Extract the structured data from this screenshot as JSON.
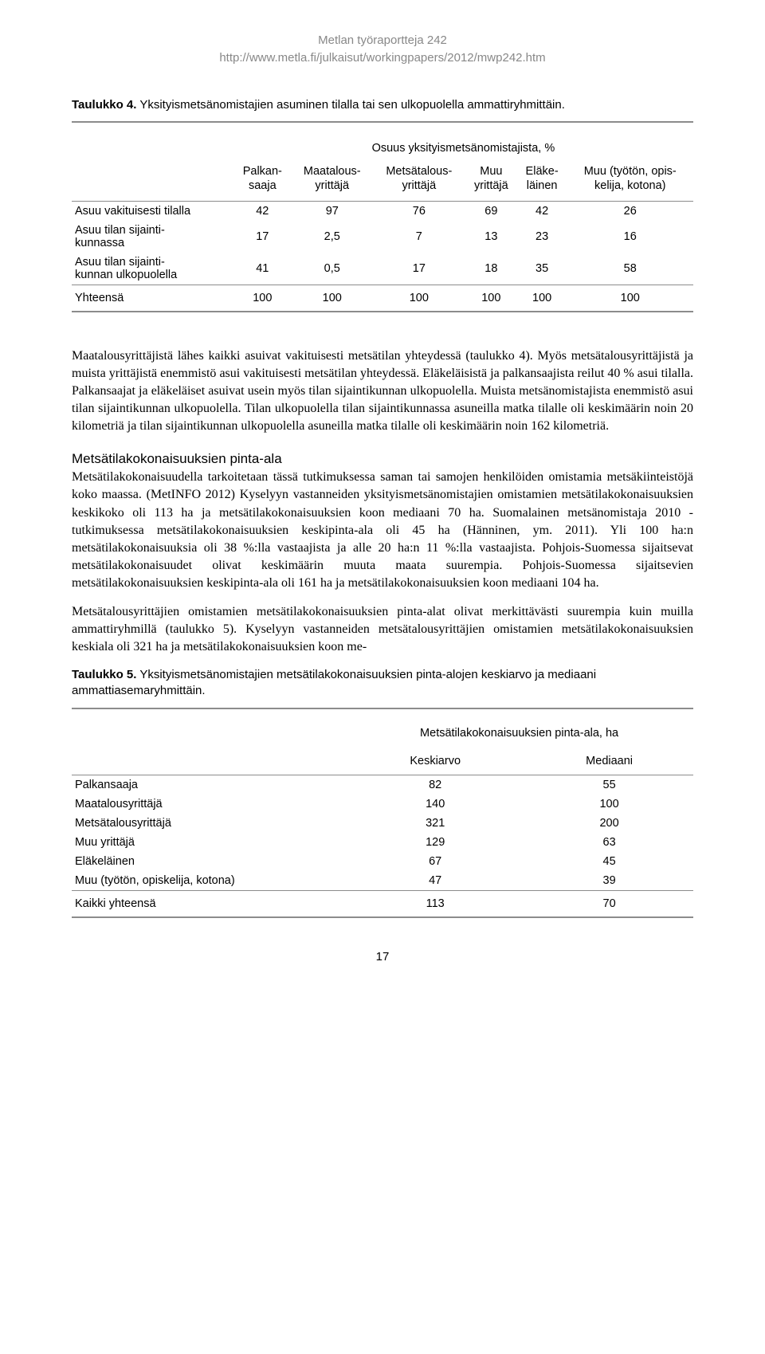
{
  "header": {
    "line1": "Metlan työraportteja 242",
    "line2": "http://www.metla.fi/julkaisut/workingpapers/2012/mwp242.htm"
  },
  "table4": {
    "caption_bold": "Taulukko 4.",
    "caption_rest": " Yksityismetsänomistajien asuminen tilalla tai sen ulkopuolella ammattiryhmittäin.",
    "super_header": "Osuus yksityismetsänomistajista, %",
    "columns": [
      "Palkan-\nsaaja",
      "Maatalous-\nyrittäjä",
      "Metsätalous-\nyrittäjä",
      "Muu\nyrittäjä",
      "Eläke-\nläinen",
      "Muu (työtön, opis-\nkelija, kotona)"
    ],
    "rows": [
      {
        "label": "Asuu vakituisesti tilalla",
        "v": [
          "42",
          "97",
          "76",
          "69",
          "42",
          "26"
        ]
      },
      {
        "label": "Asuu tilan sijainti-\nkunnassa",
        "v": [
          "17",
          "2,5",
          "7",
          "13",
          "23",
          "16"
        ]
      },
      {
        "label": "Asuu tilan sijainti-\nkunnan ulkopuolella",
        "v": [
          "41",
          "0,5",
          "17",
          "18",
          "35",
          "58"
        ]
      }
    ],
    "footer": {
      "label": "Yhteensä",
      "v": [
        "100",
        "100",
        "100",
        "100",
        "100",
        "100"
      ]
    }
  },
  "para1": "Maatalousyrittäjistä lähes kaikki asuivat vakituisesti metsätilan yhteydessä (taulukko 4). Myös metsätalousyrittäjistä ja muista yrittäjistä enemmistö asui vakituisesti metsätilan yhteydessä. Eläkeläisistä ja palkansaajista reilut 40 % asui tilalla. Palkansaajat ja eläkeläiset asuivat usein myös tilan sijaintikunnan ulkopuolella. Muista metsänomistajista enemmistö asui tilan sijaintikunnan ulkopuolella. Tilan ulkopuolella tilan sijaintikunnassa asuneilla matka tilalle oli keskimäärin noin 20 kilometriä ja tilan sijaintikunnan ulkopuolella asuneilla matka tilalle oli keskimäärin noin 162 kilometriä.",
  "section_h": "Metsätilakokonaisuuksien pinta-ala",
  "para2": "Metsätilakokonaisuudella tarkoitetaan tässä tutkimuksessa saman tai samojen henkilöiden omistamia metsäkiinteistöjä koko maassa. (MetINFO 2012) Kyselyyn vastanneiden yksityismetsänomistajien omistamien metsätilakokonaisuuksien keskikoko oli 113 ha ja metsätilakokonaisuuksien koon mediaani 70 ha. Suomalainen metsänomistaja 2010 -tutkimuksessa metsätilakokonaisuuksien keskipinta-ala oli 45 ha (Hänninen, ym. 2011). Yli 100 ha:n metsätilakokonaisuuksia oli 38 %:lla vastaajista ja alle 20 ha:n 11 %:lla vastaajista. Pohjois-Suomessa sijaitsevat metsätilakokonaisuudet olivat keskimäärin muuta maata suurempia. Pohjois-Suomessa sijaitsevien metsätilakokonaisuuksien keskipinta-ala oli 161 ha ja metsätilakokonaisuuksien koon mediaani 104 ha.",
  "para3": "Metsätalousyrittäjien omistamien metsätilakokonaisuuksien pinta-alat olivat merkittävästi suurempia kuin muilla ammattiryhmillä (taulukko 5). Kyselyyn vastanneiden metsätalousyrittäjien omistamien metsätilakokonaisuuksien keskiala oli 321 ha ja metsätilakokonaisuuksien koon me-",
  "table5": {
    "caption_bold": "Taulukko 5.",
    "caption_rest": " Yksityismetsänomistajien metsätilakokonaisuuksien pinta-alojen keskiarvo ja mediaani ammattiasemaryhmittäin.",
    "super_header": "Metsätilakokonaisuuksien pinta-ala, ha",
    "columns": [
      "Keskiarvo",
      "Mediaani"
    ],
    "rows": [
      {
        "label": "Palkansaaja",
        "v": [
          "82",
          "55"
        ]
      },
      {
        "label": "Maatalousyrittäjä",
        "v": [
          "140",
          "100"
        ]
      },
      {
        "label": "Metsätalousyrittäjä",
        "v": [
          "321",
          "200"
        ]
      },
      {
        "label": "Muu yrittäjä",
        "v": [
          "129",
          "63"
        ]
      },
      {
        "label": "Eläkeläinen",
        "v": [
          "67",
          "45"
        ]
      },
      {
        "label": "Muu (työtön, opiskelija, kotona)",
        "v": [
          "47",
          "39"
        ]
      }
    ],
    "footer": {
      "label": "Kaikki yhteensä",
      "v": [
        "113",
        "70"
      ]
    }
  },
  "page_number": "17"
}
